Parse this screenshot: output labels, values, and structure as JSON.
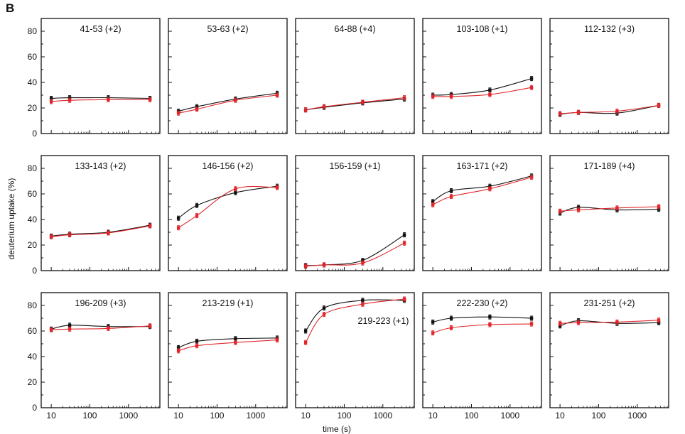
{
  "figure": {
    "panel_letter": "B",
    "ylabel": "deuterium uptake (%)",
    "xlabel": "time (s)"
  },
  "colors": {
    "series_a": "#111111",
    "series_b": "#e0262b"
  },
  "chart_data": [
    {
      "type": "line",
      "title": "41-53 (+2)",
      "x": [
        10,
        30,
        300,
        3600
      ],
      "xscale": "log",
      "ylim": [
        0,
        90
      ],
      "yticks": [
        0,
        20,
        40,
        60,
        80
      ],
      "xticks": [
        10,
        100,
        1000
      ],
      "series": [
        {
          "values": [
            27.5,
            28,
            28,
            27.5
          ]
        },
        {
          "values": [
            25,
            26,
            26.5,
            26.5
          ]
        }
      ]
    },
    {
      "type": "line",
      "title": "53-63 (+2)",
      "x": [
        10,
        30,
        300,
        3600
      ],
      "xscale": "log",
      "ylim": [
        0,
        90
      ],
      "series": [
        {
          "values": [
            17.5,
            21,
            27,
            31.5
          ]
        },
        {
          "values": [
            16,
            19,
            26,
            30
          ]
        }
      ]
    },
    {
      "type": "line",
      "title": "64-88 (+4)",
      "x": [
        10,
        30,
        300,
        3600
      ],
      "xscale": "log",
      "ylim": [
        0,
        90
      ],
      "series": [
        {
          "values": [
            18.5,
            20.5,
            24,
            27
          ]
        },
        {
          "values": [
            18.5,
            21,
            24.5,
            28
          ]
        }
      ]
    },
    {
      "type": "line",
      "title": "103-108 (+1)",
      "x": [
        10,
        30,
        300,
        3600
      ],
      "xscale": "log",
      "ylim": [
        0,
        90
      ],
      "series": [
        {
          "values": [
            30,
            30.5,
            34,
            43
          ]
        },
        {
          "values": [
            29,
            29,
            30.5,
            36
          ]
        }
      ]
    },
    {
      "type": "line",
      "title": "112-132 (+3)",
      "x": [
        10,
        30,
        300,
        3600
      ],
      "xscale": "log",
      "ylim": [
        0,
        90
      ],
      "series": [
        {
          "values": [
            15,
            16.5,
            16,
            22
          ]
        },
        {
          "values": [
            15.5,
            16.5,
            17.5,
            22
          ]
        }
      ]
    },
    {
      "type": "line",
      "title": "133-143 (+2)",
      "x": [
        10,
        30,
        300,
        3600
      ],
      "xscale": "log",
      "ylim": [
        0,
        90
      ],
      "yticks": [
        0,
        20,
        40,
        60,
        80
      ],
      "series": [
        {
          "values": [
            27,
            28.5,
            30,
            35.5
          ]
        },
        {
          "values": [
            26.5,
            28,
            29.5,
            35
          ]
        }
      ]
    },
    {
      "type": "line",
      "title": "146-156 (+2)",
      "x": [
        10,
        30,
        300,
        3600
      ],
      "xscale": "log",
      "ylim": [
        0,
        90
      ],
      "series": [
        {
          "values": [
            41,
            51,
            61,
            66
          ]
        },
        {
          "values": [
            33.5,
            43,
            64,
            65
          ]
        }
      ]
    },
    {
      "type": "line",
      "title": "156-159 (+1)",
      "x": [
        10,
        30,
        300,
        3600
      ],
      "xscale": "log",
      "ylim": [
        0,
        90
      ],
      "series": [
        {
          "values": [
            4,
            4.5,
            8,
            28
          ]
        },
        {
          "values": [
            3.5,
            4.5,
            6,
            21.5
          ]
        }
      ]
    },
    {
      "type": "line",
      "title": "163-171 (+2)",
      "x": [
        10,
        30,
        300,
        3600
      ],
      "xscale": "log",
      "ylim": [
        0,
        90
      ],
      "series": [
        {
          "values": [
            54,
            62.5,
            66,
            74
          ]
        },
        {
          "values": [
            51.5,
            58,
            64,
            73
          ]
        }
      ]
    },
    {
      "type": "line",
      "title": "171-189 (+4)",
      "x": [
        10,
        30,
        300,
        3600
      ],
      "xscale": "log",
      "ylim": [
        0,
        90
      ],
      "series": [
        {
          "values": [
            45,
            49.5,
            47.5,
            48
          ]
        },
        {
          "values": [
            46.5,
            47.5,
            49,
            50
          ]
        }
      ]
    },
    {
      "type": "line",
      "title": "196-209 (+3)",
      "x": [
        10,
        30,
        300,
        3600
      ],
      "xscale": "log",
      "ylim": [
        0,
        90
      ],
      "yticks": [
        0,
        20,
        40,
        60,
        80
      ],
      "xticks": [
        10,
        100,
        1000
      ],
      "series": [
        {
          "values": [
            61.5,
            64.5,
            63.5,
            63.5
          ]
        },
        {
          "values": [
            61,
            61.5,
            62,
            64
          ]
        }
      ]
    },
    {
      "type": "line",
      "title": "213-219 (+1)",
      "x": [
        10,
        30,
        300,
        3600
      ],
      "xscale": "log",
      "ylim": [
        0,
        90
      ],
      "xticks": [
        10,
        100,
        1000
      ],
      "series": [
        {
          "values": [
            47,
            52,
            54,
            54.5
          ]
        },
        {
          "values": [
            44.5,
            48.5,
            51,
            53
          ]
        }
      ]
    },
    {
      "type": "line",
      "title": "219-223 (+1)",
      "x": [
        10,
        30,
        300,
        3600
      ],
      "xscale": "log",
      "ylim": [
        0,
        90
      ],
      "xticks": [
        10,
        100,
        1000
      ],
      "series": [
        {
          "values": [
            60,
            78,
            84,
            84
          ]
        },
        {
          "values": [
            51,
            73,
            81,
            85
          ]
        }
      ]
    },
    {
      "type": "line",
      "title": "222-230 (+2)",
      "x": [
        10,
        30,
        300,
        3600
      ],
      "xscale": "log",
      "ylim": [
        0,
        90
      ],
      "xticks": [
        10,
        100,
        1000
      ],
      "series": [
        {
          "values": [
            67,
            70,
            71,
            70
          ]
        },
        {
          "values": [
            58.5,
            62.5,
            65,
            65.5
          ]
        }
      ]
    },
    {
      "type": "line",
      "title": "231-251 (+2)",
      "x": [
        10,
        30,
        300,
        3600
      ],
      "xscale": "log",
      "ylim": [
        0,
        90
      ],
      "xticks": [
        10,
        100,
        1000
      ],
      "series": [
        {
          "values": [
            64,
            68,
            66,
            66.5
          ]
        },
        {
          "values": [
            66,
            66.5,
            67,
            68.5
          ]
        }
      ]
    }
  ]
}
